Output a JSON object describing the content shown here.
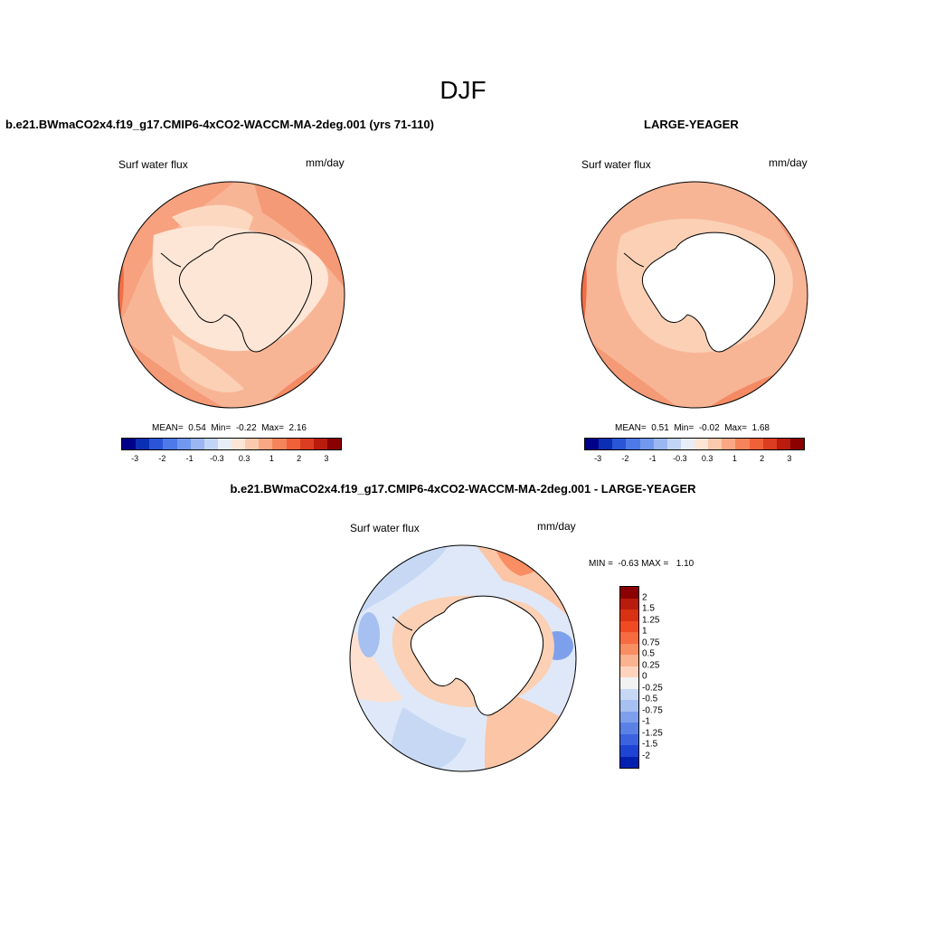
{
  "main_title": "DJF",
  "panels": {
    "case": {
      "title": "b.e21.BWmaCO2x4.f19_g17.CMIP6-4xCO2-WACCM-MA-2deg.001 (yrs 71-110)",
      "variable": "Surf water flux",
      "units": "mm/day",
      "stats": {
        "mean_label": "MEAN=",
        "mean": "0.54",
        "min_label": "Min=",
        "min": "-0.22",
        "max_label": "Max=",
        "max": "2.16"
      }
    },
    "obs": {
      "title": "LARGE-YEAGER",
      "variable": "Surf water flux",
      "units": "mm/day",
      "stats": {
        "mean_label": "MEAN=",
        "mean": "0.51",
        "min_label": "Min=",
        "min": "-0.02",
        "max_label": "Max=",
        "max": "1.68"
      }
    },
    "diff": {
      "title": "b.e21.BWmaCO2x4.f19_g17.CMIP6-4xCO2-WACCM-MA-2deg.001 - LARGE-YEAGER",
      "variable": "Surf water flux",
      "units": "mm/day",
      "stats": {
        "min_label": "MIN =",
        "min": "-0.63",
        "max_label": "MAX =",
        "max": "1.10"
      }
    }
  },
  "colorbar_main": {
    "colors": [
      "#00008b",
      "#0b2fb4",
      "#2a55d6",
      "#4d7ae8",
      "#7298ee",
      "#9ab7f2",
      "#c3d5f6",
      "#e8eef8",
      "#fde6d6",
      "#fbcaae",
      "#f9a883",
      "#f6845b",
      "#f0613a",
      "#dc3d20",
      "#b81c0c",
      "#8b0000"
    ],
    "labels": [
      "-3",
      "-2",
      "-1",
      "-0.3",
      "0.3",
      "1",
      "2",
      "3"
    ]
  },
  "colorbar_diff": {
    "colors": [
      "#8b0000",
      "#b81c0c",
      "#d83214",
      "#ef4a22",
      "#f66b3f",
      "#f98e63",
      "#fbb28f",
      "#fdd3bd",
      "#f2f2f2",
      "#c6d8f4",
      "#a5c0f1",
      "#7ea0ec",
      "#5a82e6",
      "#3b63e0",
      "#1f43d2",
      "#0021b0"
    ],
    "labels": [
      "2",
      "1.5",
      "1.25",
      "1",
      "0.75",
      "0.5",
      "0.25",
      "0",
      "-0.25",
      "-0.5",
      "-0.75",
      "-1",
      "-1.25",
      "-1.5",
      "-2"
    ]
  }
}
